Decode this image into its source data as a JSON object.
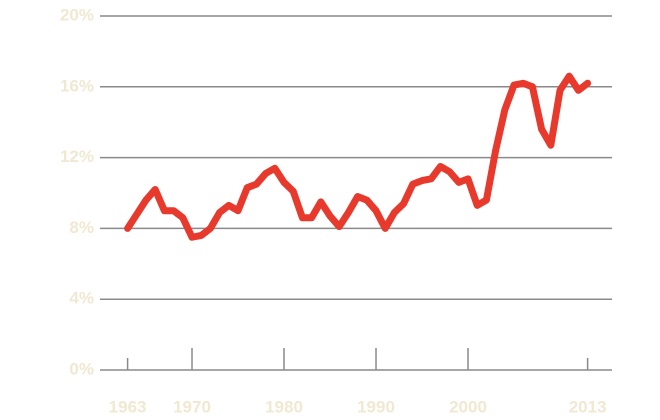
{
  "chart_data": {
    "type": "line",
    "x": [
      1963,
      1964,
      1965,
      1966,
      1967,
      1968,
      1969,
      1970,
      1971,
      1972,
      1973,
      1974,
      1975,
      1976,
      1977,
      1978,
      1979,
      1980,
      1981,
      1982,
      1983,
      1984,
      1985,
      1986,
      1987,
      1988,
      1989,
      1990,
      1991,
      1992,
      1993,
      1994,
      1995,
      1996,
      1997,
      1998,
      1999,
      2000,
      2001,
      2002,
      2003,
      2004,
      2005,
      2006,
      2007,
      2008,
      2009,
      2010,
      2011,
      2012,
      2013
    ],
    "series": [
      {
        "color": "#e8392d",
        "values": [
          8.0,
          8.8,
          9.6,
          10.2,
          9.0,
          9.0,
          8.6,
          7.5,
          7.6,
          8.0,
          8.9,
          9.3,
          9.0,
          10.3,
          10.5,
          11.1,
          11.4,
          10.6,
          10.1,
          8.6,
          8.6,
          9.5,
          8.7,
          8.1,
          8.9,
          9.8,
          9.6,
          9.0,
          8.0,
          8.9,
          9.4,
          10.5,
          10.7,
          10.8,
          11.5,
          11.2,
          10.6,
          10.8,
          9.3,
          9.6,
          12.4,
          14.7,
          16.1,
          16.2,
          16.0,
          13.6,
          12.7,
          15.8,
          16.6,
          15.8,
          16.2
        ]
      }
    ],
    "xlim": [
      1960,
      2015.65
    ],
    "xticks": [
      1963,
      1970,
      1980,
      1990,
      2000,
      2013
    ],
    "ylim": [
      0,
      20
    ],
    "yticks": [
      {
        "value": 0,
        "label": "0%"
      },
      {
        "value": 4,
        "label": "4%"
      },
      {
        "value": 8,
        "label": "8%"
      },
      {
        "value": 12,
        "label": "12%"
      },
      {
        "value": 16,
        "label": "16%"
      },
      {
        "value": 20,
        "label": "20%"
      }
    ],
    "grid": true
  }
}
